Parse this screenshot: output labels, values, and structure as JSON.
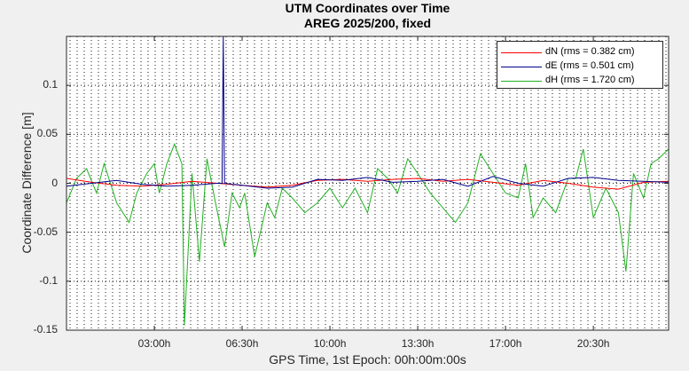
{
  "chart_data": {
    "type": "line",
    "title": "UTM Coordinates over Time",
    "subtitle": "AREG 2025/200, fixed",
    "xlabel": "GPS Time, 1st Epoch: 00h:00m:00s",
    "ylabel": "Coordinate Difference [m]",
    "xlim": [
      0,
      24
    ],
    "ylim": [
      -0.15,
      0.15
    ],
    "x_ticks": [
      3.5,
      7,
      10.5,
      14,
      17.5,
      21
    ],
    "x_tick_labels": [
      "03:00h",
      "06:30h",
      "10:00h",
      "13:30h",
      "17:00h",
      "20:30h"
    ],
    "y_ticks": [
      -0.15,
      -0.1,
      -0.05,
      0,
      0.05,
      0.1
    ],
    "y_tick_labels": [
      "-0.15",
      "-0.1",
      "-0.05",
      "0",
      "0.05",
      "0.1"
    ],
    "grid": "dotted",
    "legend_position": "top-right",
    "series": [
      {
        "name": "dN (rms = 0.382 cm)",
        "color": "#ff0000",
        "x": [
          0,
          1,
          2,
          3,
          4,
          5,
          6,
          7,
          8,
          9,
          10,
          11,
          12,
          13,
          14,
          15,
          16,
          17,
          18,
          19,
          20,
          21,
          22,
          23,
          24
        ],
        "y": [
          0.005,
          0.001,
          -0.002,
          -0.003,
          -0.001,
          0.002,
          0,
          -0.002,
          -0.004,
          -0.002,
          0.003,
          0.004,
          0.002,
          0.004,
          0.005,
          0.002,
          0.004,
          0.001,
          -0.002,
          0.003,
          0,
          -0.004,
          -0.006,
          0.001,
          0.002
        ]
      },
      {
        "name": "dE (rms = 0.501 cm)",
        "color": "#00008b",
        "x": [
          0,
          1,
          2,
          3,
          4,
          5,
          6,
          6.2,
          6.25,
          6.3,
          7,
          8,
          9,
          10,
          11,
          12,
          13,
          14,
          15,
          16,
          17,
          18,
          19,
          20,
          21,
          22,
          23,
          24
        ],
        "y": [
          -0.003,
          0,
          0.003,
          -0.001,
          -0.003,
          -0.002,
          0,
          0,
          0.15,
          0,
          -0.002,
          -0.005,
          -0.004,
          0.004,
          0.003,
          0.006,
          0.001,
          0.002,
          0.004,
          -0.003,
          0.007,
          0,
          -0.003,
          0.005,
          0.006,
          0.003,
          0.002,
          0.001
        ]
      },
      {
        "name": "dH (rms = 1.720 cm)",
        "color": "#22b022",
        "x": [
          0,
          0.4,
          0.8,
          1.2,
          1.5,
          2,
          2.5,
          2.8,
          3.2,
          3.5,
          3.7,
          4,
          4.3,
          4.6,
          4.7,
          5,
          5.3,
          5.6,
          5.9,
          6.1,
          6.3,
          6.6,
          6.9,
          7.1,
          7.5,
          8,
          8.3,
          8.6,
          9,
          9.5,
          10,
          10.5,
          11,
          11.5,
          12,
          12.4,
          12.8,
          13.2,
          13.6,
          14,
          14.5,
          15,
          15.5,
          16,
          16.5,
          17,
          17.5,
          18,
          18.3,
          18.6,
          19,
          19.5,
          20,
          20.3,
          20.6,
          21,
          21.5,
          22,
          22.3,
          22.6,
          23,
          23.3,
          23.6,
          24
        ],
        "y": [
          -0.02,
          0.005,
          0.015,
          -0.01,
          0.02,
          -0.02,
          -0.04,
          -0.01,
          0.01,
          0.02,
          -0.01,
          0.02,
          0.04,
          0.02,
          -0.145,
          0.01,
          -0.08,
          0.025,
          -0.015,
          -0.04,
          -0.065,
          -0.01,
          -0.025,
          -0.01,
          -0.075,
          -0.02,
          -0.035,
          -0.005,
          -0.015,
          -0.03,
          -0.02,
          -0.005,
          -0.025,
          -0.005,
          -0.03,
          0.015,
          0.005,
          -0.01,
          0.025,
          0.01,
          -0.01,
          -0.025,
          -0.04,
          -0.02,
          0.03,
          0.01,
          -0.01,
          -0.015,
          0.02,
          -0.035,
          -0.015,
          -0.03,
          0.005,
          0.005,
          0.035,
          -0.035,
          -0.005,
          -0.03,
          -0.09,
          0.01,
          -0.015,
          0.02,
          0.025,
          0.035
        ]
      }
    ]
  }
}
